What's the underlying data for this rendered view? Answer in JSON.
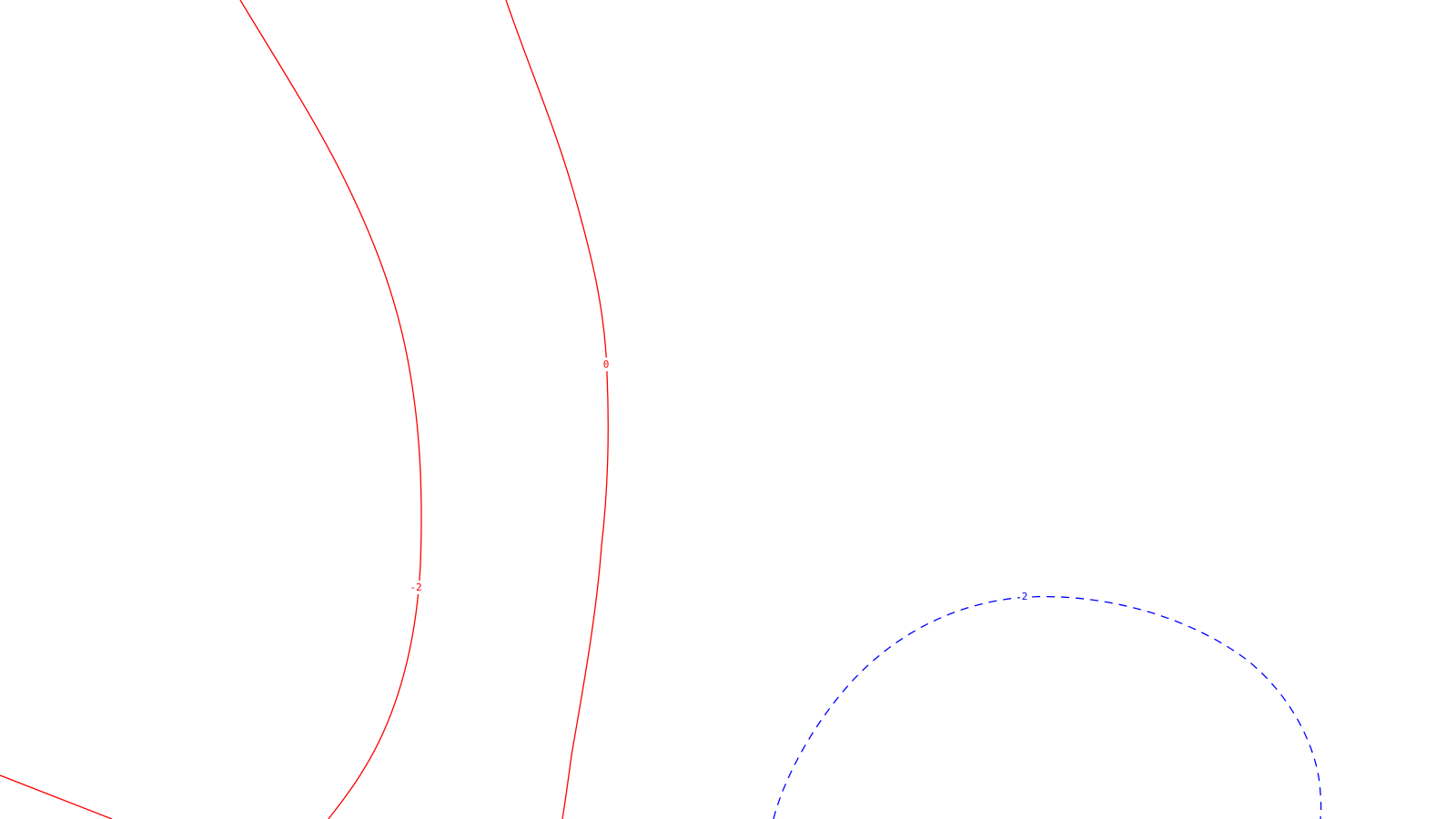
{
  "chart_data": {
    "type": "contour",
    "title": "",
    "xlabel": "",
    "ylabel": "",
    "legend": "none",
    "grid": false,
    "levels": [
      {
        "value": -2,
        "label": "-2",
        "color": "#ff0000",
        "dash": "solid"
      },
      {
        "value": 0,
        "label": "0",
        "color": "#ff0000",
        "dash": "solid"
      },
      {
        "value": 2,
        "label": "2",
        "color": "#0000ff",
        "dash": "dashed"
      }
    ],
    "colors": {
      "negative_and_zero": "#ff0000",
      "positive": "#0000ff"
    }
  }
}
